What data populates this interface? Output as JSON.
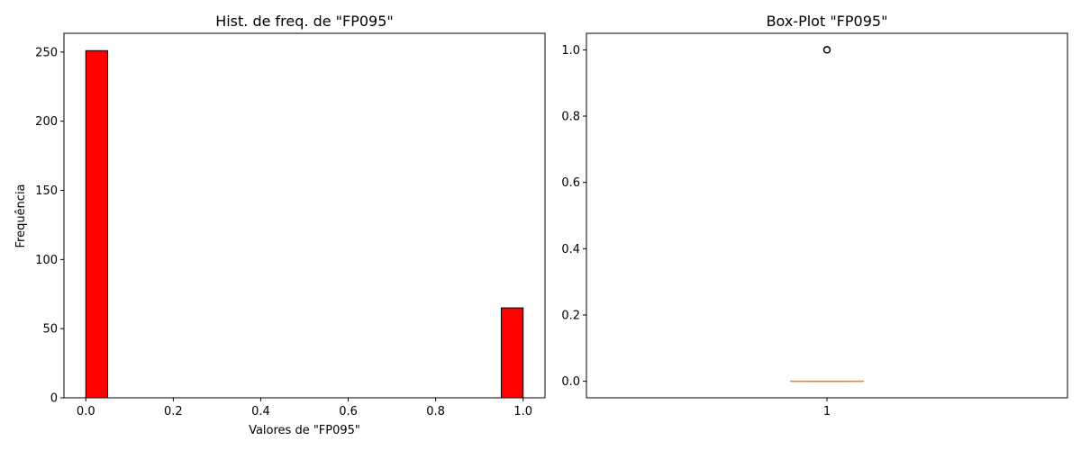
{
  "chart_data": [
    {
      "type": "bar",
      "title": "Hist. de freq. de \"FP095\"",
      "xlabel": "Valores de \"FP095\"",
      "ylabel": "Frequência",
      "xlim": [
        -0.05,
        1.05
      ],
      "ylim": [
        0,
        263.55
      ],
      "xticks": [
        "0.0",
        "0.2",
        "0.4",
        "0.6",
        "0.8",
        "1.0"
      ],
      "yticks": [
        "0",
        "50",
        "100",
        "150",
        "200",
        "250"
      ],
      "bin_width": 0.05,
      "bins": [
        {
          "x_start": 0.0,
          "x_end": 0.05,
          "value": 251
        },
        {
          "x_start": 0.95,
          "x_end": 1.0,
          "value": 65
        }
      ],
      "bar_color": "#ff0000",
      "edge_color": "#000000",
      "grid": false,
      "legend": false
    },
    {
      "type": "box",
      "title": "Box-Plot \"FP095\"",
      "xlabel": "",
      "ylabel": "",
      "ylim": [
        -0.05,
        1.05
      ],
      "xticks": [
        "1"
      ],
      "yticks": [
        "0.0",
        "0.2",
        "0.4",
        "0.6",
        "0.8",
        "1.0"
      ],
      "position": 1,
      "q1": 0.0,
      "median": 0.0,
      "q3": 0.0,
      "whisker_low": 0.0,
      "whisker_high": 0.0,
      "outliers": [
        1.0
      ],
      "median_color": "#ff7f0e",
      "grid": false,
      "legend": false
    }
  ]
}
